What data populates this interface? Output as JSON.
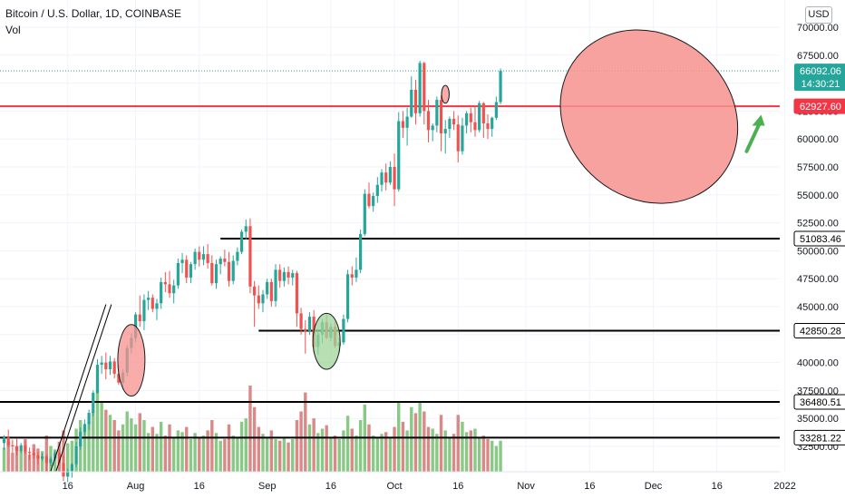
{
  "header": {
    "title": "Bitcoin / U.S. Dollar, 1D, COINBASE",
    "indicator": "Vol",
    "currency_button": "USD"
  },
  "colors": {
    "up": "#26a69a",
    "down": "#ef5350",
    "vol_up": "#87c985",
    "vol_down": "#d98a88",
    "red_level": "#f23645",
    "black_level": "#000000",
    "last_price_bg": "#26a69a",
    "arrow": "#4caf50",
    "ellipse_red": "#f7928f",
    "ellipse_green": "#9fd49a"
  },
  "chart_data": {
    "type": "candlestick",
    "title": "Bitcoin / U.S. Dollar, 1D, COINBASE",
    "y_axis": {
      "min": 31500,
      "max": 71500,
      "ticks": [
        "32500.00",
        "35000.00",
        "37500.00",
        "40000.00",
        "42500.00",
        "45000.00",
        "47500.00",
        "50000.00",
        "52500.00",
        "55000.00",
        "57500.00",
        "60000.00",
        "62500.00",
        "65000.00",
        "67500.00",
        "70000.00"
      ]
    },
    "x_axis": {
      "ticks": [
        "16",
        "Aug",
        "16",
        "Sep",
        "16",
        "Oct",
        "16",
        "Nov",
        "16",
        "Dec",
        "16",
        "2022"
      ]
    },
    "x_tick_days": [
      15,
      31,
      46,
      62,
      77,
      92,
      107,
      123,
      138,
      153,
      168,
      184
    ],
    "last_price": {
      "value": "66092.06",
      "countdown": "14:30:21"
    },
    "levels": [
      {
        "value": 62927.6,
        "label": "62927.60",
        "color": "red",
        "start_day": 0
      },
      {
        "value": 51083.46,
        "label": "51083.46",
        "color": "black",
        "start_day": 51
      },
      {
        "value": 42850.28,
        "label": "42850.28",
        "color": "black",
        "start_day": 60
      },
      {
        "value": 36480.51,
        "label": "36480.51",
        "color": "black",
        "start_day": 0
      },
      {
        "value": 33281.22,
        "label": "33281.22",
        "color": "black",
        "start_day": 0
      }
    ],
    "ohlc_start_day": 0,
    "ohlc": [
      [
        32800,
        33500,
        32200,
        33300
      ],
      [
        33300,
        34000,
        32400,
        32600
      ],
      [
        32600,
        33100,
        31900,
        32500
      ],
      [
        32500,
        33200,
        31700,
        32100
      ],
      [
        32100,
        32800,
        31900,
        32600
      ],
      [
        32600,
        33000,
        31800,
        32000
      ],
      [
        32000,
        32400,
        31300,
        31900
      ],
      [
        31900,
        32300,
        31400,
        31700
      ],
      [
        31700,
        32000,
        30900,
        31400
      ],
      [
        31400,
        31900,
        31200,
        31600
      ],
      [
        31600,
        31800,
        30300,
        31000
      ],
      [
        31000,
        31600,
        30700,
        31400
      ],
      [
        31400,
        32100,
        31200,
        31900
      ],
      [
        31900,
        32300,
        30800,
        31000
      ],
      [
        31000,
        31700,
        29400,
        29800
      ],
      [
        29800,
        30500,
        29300,
        30300
      ],
      [
        30300,
        31000,
        29700,
        30900
      ],
      [
        30900,
        32900,
        30600,
        32500
      ],
      [
        32500,
        34200,
        32200,
        33800
      ],
      [
        33800,
        34900,
        33500,
        34500
      ],
      [
        34500,
        35800,
        34000,
        35500
      ],
      [
        35500,
        37500,
        35200,
        37300
      ],
      [
        37300,
        40300,
        37200,
        39800
      ],
      [
        39800,
        40600,
        39000,
        40000
      ],
      [
        40000,
        40900,
        38500,
        39400
      ],
      [
        39400,
        40600,
        38900,
        40100
      ],
      [
        40100,
        40400,
        38600,
        39000
      ],
      [
        39000,
        39800,
        38000,
        38200
      ],
      [
        38200,
        39400,
        37600,
        39100
      ],
      [
        39100,
        41600,
        38800,
        41300
      ],
      [
        41300,
        42600,
        40800,
        42200
      ],
      [
        42200,
        44500,
        41800,
        44300
      ],
      [
        44300,
        46000,
        43200,
        43700
      ],
      [
        43700,
        46100,
        42900,
        45600
      ],
      [
        45600,
        46400,
        44700,
        45800
      ],
      [
        45800,
        46100,
        44500,
        44800
      ],
      [
        44800,
        45700,
        43800,
        45300
      ],
      [
        45300,
        47600,
        44800,
        47200
      ],
      [
        47200,
        48100,
        46300,
        47000
      ],
      [
        47000,
        48200,
        45800,
        46200
      ],
      [
        46200,
        47400,
        45300,
        46900
      ],
      [
        46900,
        49300,
        46600,
        48900
      ],
      [
        48900,
        49800,
        48000,
        49200
      ],
      [
        49200,
        49600,
        47100,
        47600
      ],
      [
        47600,
        49000,
        47100,
        48800
      ],
      [
        48800,
        50200,
        48300,
        49900
      ],
      [
        49900,
        50400,
        48600,
        49200
      ],
      [
        49200,
        50400,
        48700,
        49700
      ],
      [
        49700,
        50600,
        48400,
        48900
      ],
      [
        48900,
        49600,
        46900,
        47100
      ],
      [
        47100,
        49200,
        46600,
        48800
      ],
      [
        48800,
        49500,
        47900,
        49300
      ],
      [
        49300,
        50100,
        48600,
        49000
      ],
      [
        49000,
        49900,
        46800,
        47300
      ],
      [
        47300,
        49600,
        47000,
        49100
      ],
      [
        49100,
        50300,
        48700,
        49900
      ],
      [
        49900,
        51900,
        49700,
        51700
      ],
      [
        51700,
        52800,
        51000,
        52200
      ],
      [
        52200,
        52900,
        46200,
        46800
      ],
      [
        46800,
        47300,
        43200,
        46000
      ],
      [
        46000,
        46900,
        44800,
        45300
      ],
      [
        45300,
        46500,
        44500,
        46100
      ],
      [
        46100,
        47500,
        45700,
        47200
      ],
      [
        47200,
        47500,
        45000,
        45500
      ],
      [
        45500,
        48800,
        45000,
        48300
      ],
      [
        48300,
        48800,
        46700,
        47300
      ],
      [
        47300,
        48500,
        46800,
        48100
      ],
      [
        48100,
        48600,
        47000,
        47600
      ],
      [
        47600,
        48300,
        46900,
        48000
      ],
      [
        48000,
        48200,
        43200,
        44400
      ],
      [
        44400,
        44900,
        42500,
        43000
      ],
      [
        43000,
        43800,
        40800,
        42800
      ],
      [
        42800,
        44500,
        42500,
        44100
      ],
      [
        44100,
        44700,
        40900,
        41400
      ],
      [
        41400,
        43000,
        40700,
        42500
      ],
      [
        42500,
        43900,
        41700,
        43600
      ],
      [
        43600,
        44300,
        42100,
        42200
      ],
      [
        42200,
        43500,
        41900,
        43200
      ],
      [
        43200,
        43700,
        41300,
        41500
      ],
      [
        41500,
        42200,
        40900,
        41800
      ],
      [
        41800,
        44300,
        41600,
        43900
      ],
      [
        43900,
        48300,
        43600,
        47900
      ],
      [
        47900,
        48600,
        46900,
        47600
      ],
      [
        47600,
        49400,
        47200,
        48300
      ],
      [
        48300,
        51900,
        48000,
        51500
      ],
      [
        51500,
        55500,
        51300,
        55100
      ],
      [
        55100,
        56100,
        53800,
        54000
      ],
      [
        54000,
        55200,
        53500,
        54900
      ],
      [
        54900,
        56600,
        54300,
        55900
      ],
      [
        55900,
        57300,
        55300,
        57000
      ],
      [
        57000,
        57800,
        55400,
        56100
      ],
      [
        56100,
        58000,
        55900,
        57500
      ],
      [
        57500,
        58700,
        54000,
        55500
      ],
      [
        55500,
        62400,
        55300,
        61600
      ],
      [
        61600,
        62500,
        60100,
        61000
      ],
      [
        61000,
        62800,
        59400,
        62000
      ],
      [
        62000,
        65600,
        61900,
        64400
      ],
      [
        64400,
        65300,
        61300,
        62300
      ],
      [
        62300,
        67000,
        62000,
        66800
      ],
      [
        66800,
        66900,
        61300,
        62500
      ],
      [
        62500,
        63500,
        59700,
        60800
      ],
      [
        60800,
        61400,
        59800,
        61200
      ],
      [
        61200,
        63800,
        60600,
        63500
      ],
      [
        63500,
        63900,
        58900,
        60500
      ],
      [
        60500,
        61700,
        58700,
        60900
      ],
      [
        60900,
        62000,
        60100,
        61800
      ],
      [
        61800,
        62500,
        60800,
        61300
      ],
      [
        61300,
        62100,
        57900,
        58900
      ],
      [
        58900,
        61900,
        58600,
        61200
      ],
      [
        61200,
        62500,
        60500,
        62300
      ],
      [
        62300,
        62800,
        60600,
        61500
      ],
      [
        61500,
        63000,
        60200,
        60800
      ],
      [
        60800,
        63400,
        60600,
        63200
      ],
      [
        63200,
        63300,
        60100,
        61400
      ],
      [
        61400,
        62200,
        60000,
        60900
      ],
      [
        60900,
        62000,
        60200,
        61900
      ],
      [
        61900,
        63800,
        61700,
        63300
      ],
      [
        63300,
        66300,
        63100,
        66092
      ]
    ],
    "volume_scale_max": 100,
    "volumes": [
      28,
      35,
      22,
      30,
      25,
      38,
      20,
      32,
      27,
      24,
      42,
      30,
      26,
      35,
      48,
      33,
      36,
      50,
      60,
      52,
      58,
      70,
      95,
      80,
      72,
      66,
      60,
      48,
      55,
      70,
      62,
      55,
      68,
      60,
      45,
      52,
      44,
      58,
      42,
      55,
      40,
      48,
      46,
      52,
      38,
      45,
      40,
      42,
      48,
      60,
      45,
      36,
      38,
      55,
      42,
      40,
      58,
      62,
      100,
      75,
      52,
      44,
      40,
      48,
      38,
      36,
      40,
      34,
      38,
      60,
      70,
      92,
      55,
      62,
      45,
      50,
      54,
      40,
      42,
      38,
      48,
      65,
      50,
      42,
      60,
      78,
      55,
      42,
      40,
      44,
      46,
      40,
      52,
      80,
      58,
      48,
      75,
      68,
      82,
      70,
      52,
      50,
      44,
      66,
      48,
      40,
      44,
      66,
      58,
      46,
      48,
      50,
      40,
      42,
      38,
      36,
      30,
      36
    ],
    "volume_up": [
      1,
      0,
      0,
      0,
      1,
      0,
      0,
      0,
      0,
      1,
      0,
      1,
      1,
      0,
      0,
      1,
      1,
      1,
      1,
      1,
      1,
      1,
      1,
      1,
      0,
      1,
      0,
      0,
      1,
      1,
      1,
      1,
      0,
      1,
      1,
      0,
      1,
      1,
      0,
      0,
      1,
      1,
      1,
      0,
      1,
      1,
      0,
      1,
      0,
      0,
      1,
      1,
      0,
      0,
      1,
      1,
      1,
      1,
      0,
      0,
      0,
      1,
      1,
      0,
      1,
      0,
      1,
      0,
      1,
      0,
      0,
      0,
      1,
      0,
      1,
      1,
      0,
      1,
      0,
      1,
      1,
      1,
      0,
      1,
      1,
      1,
      0,
      1,
      1,
      1,
      0,
      1,
      0,
      1,
      0,
      1,
      1,
      0,
      1,
      0,
      0,
      1,
      1,
      0,
      1,
      1,
      0,
      0,
      1,
      1,
      0,
      1,
      1,
      0,
      0,
      1,
      1,
      1
    ],
    "annotations": [
      {
        "type": "ellipse",
        "name": "annotation-ellipse-red-aug",
        "day": 30,
        "price": 40200,
        "rx_days": 3.2,
        "ry_price": 3200,
        "color": "red"
      },
      {
        "type": "ellipse",
        "name": "annotation-ellipse-green-sep",
        "day": 76,
        "price": 41900,
        "rx_days": 3.2,
        "ry_price": 2500,
        "color": "green"
      },
      {
        "type": "ellipse",
        "name": "annotation-ellipse-small-top",
        "day": 104,
        "price": 64000,
        "rx_days": 0.9,
        "ry_price": 800,
        "color": "red"
      },
      {
        "type": "ellipse",
        "name": "annotation-ellipse-forecast",
        "day": 152,
        "price": 62000,
        "rx_days": 22,
        "ry_price": 7300,
        "rotate": 40,
        "color": "red"
      }
    ],
    "trendline": {
      "from": {
        "day": 11,
        "price": 30300
      },
      "to": {
        "day": 24,
        "price": 45200
      }
    },
    "arrow": {
      "from": {
        "day": 175,
        "price": 58900
      },
      "to": {
        "day": 178,
        "price": 62000
      }
    }
  }
}
